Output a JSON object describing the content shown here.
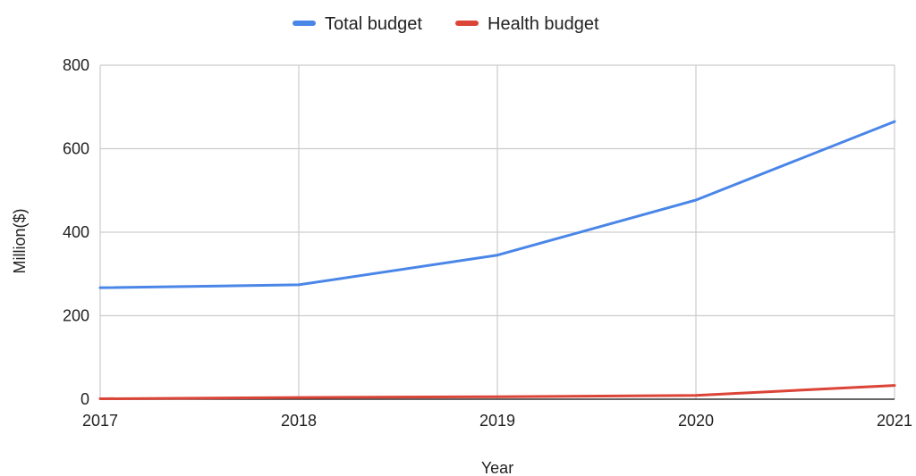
{
  "chart_data": {
    "type": "line",
    "title": "",
    "x": [
      2017,
      2018,
      2019,
      2020,
      2021
    ],
    "xlabel": "Year",
    "ylabel": "Million($)",
    "ylim": [
      0,
      800
    ],
    "yticks": [
      0,
      200,
      400,
      600,
      800
    ],
    "grid": true,
    "legend_position": "top",
    "series": [
      {
        "name": "Total budget",
        "color": "#4a86e8",
        "values": [
          267,
          274,
          345,
          477,
          665
        ]
      },
      {
        "name": "Health budget",
        "color": "#db4437",
        "values": [
          1,
          4,
          6,
          9,
          33
        ]
      }
    ]
  }
}
